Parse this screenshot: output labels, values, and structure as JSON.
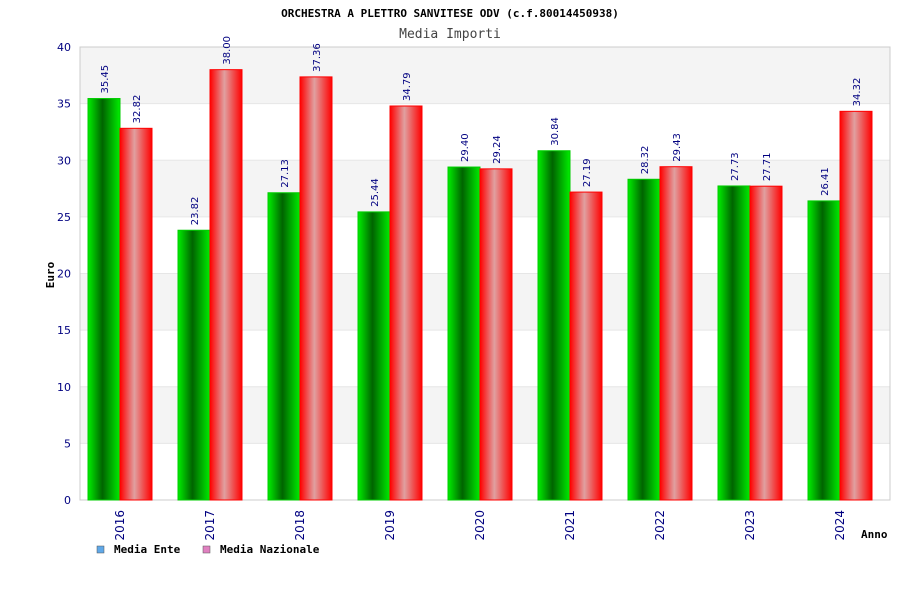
{
  "chart_data": {
    "type": "bar",
    "title": "ORCHESTRA A PLETTRO SANVITESE ODV (c.f.80014450938)",
    "subtitle": "Media Importi",
    "xlabel": "Anno",
    "ylabel": "Euro",
    "ylim": [
      0,
      40
    ],
    "yticks": [
      0,
      5,
      10,
      15,
      20,
      25,
      30,
      35,
      40
    ],
    "grid": true,
    "legend_position": "bottom-left",
    "categories": [
      "2016",
      "2017",
      "2018",
      "2019",
      "2020",
      "2021",
      "2022",
      "2023",
      "2024"
    ],
    "series": [
      {
        "name": "Media Ente",
        "color": "#00cc00",
        "legend_color": "#5fa8e8",
        "values": [
          35.45,
          23.82,
          27.13,
          25.44,
          29.4,
          30.84,
          28.32,
          27.73,
          26.41
        ],
        "labels": [
          "35.45",
          "23.82",
          "27.13",
          "25.44",
          "29.40",
          "30.84",
          "28.32",
          "27.73",
          "26.41"
        ]
      },
      {
        "name": "Media Nazionale",
        "color": "#ff0000",
        "legend_color": "#e080c0",
        "values": [
          32.82,
          38.0,
          37.36,
          34.79,
          29.24,
          27.19,
          29.43,
          27.71,
          34.32
        ],
        "labels": [
          "32.82",
          "38.00",
          "37.36",
          "34.79",
          "29.24",
          "27.19",
          "29.43",
          "27.71",
          "34.32"
        ]
      }
    ]
  }
}
